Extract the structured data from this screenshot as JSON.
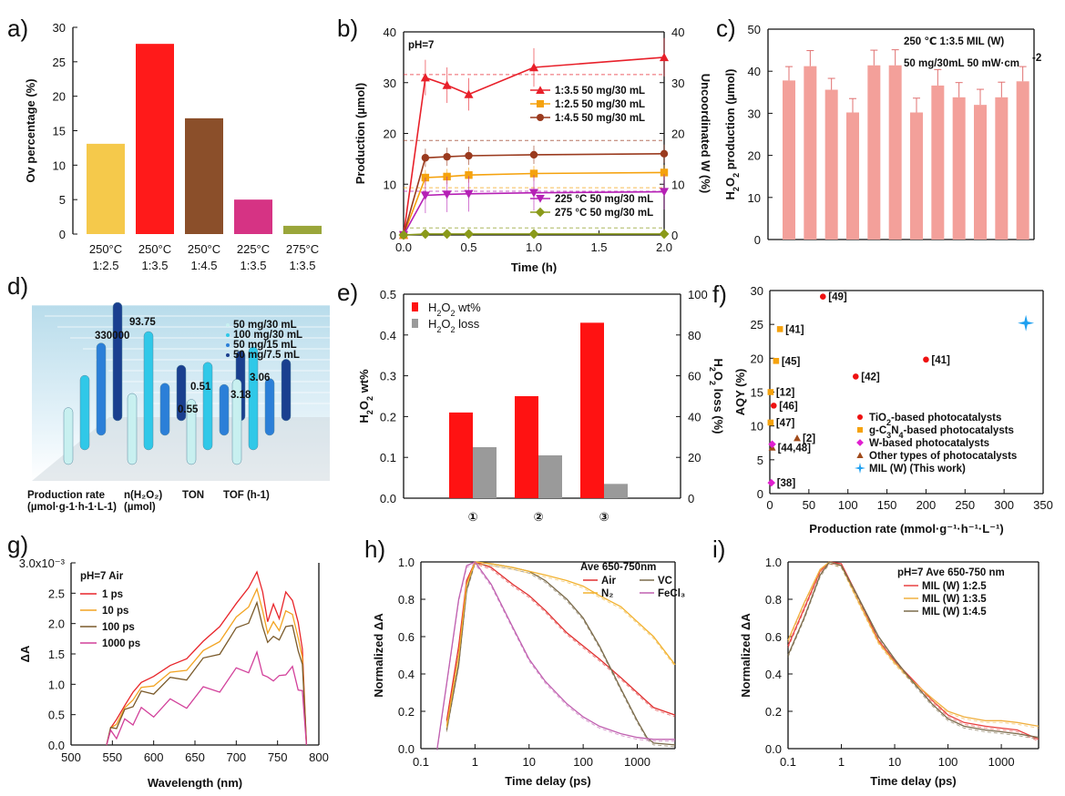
{
  "chart_data": [
    {
      "id": "a",
      "panel_label": "a)",
      "type": "bar",
      "categories": [
        [
          "250°C",
          "1:2.5"
        ],
        [
          "250°C",
          "1:3.5"
        ],
        [
          "250°C",
          "1:4.5"
        ],
        [
          "225°C",
          "1:3.5"
        ],
        [
          "275°C",
          "1:3.5"
        ]
      ],
      "values": [
        13.1,
        27.6,
        16.8,
        5.0,
        1.2
      ],
      "colors": [
        "#f5c94b",
        "#ff1a1a",
        "#8b4f2a",
        "#d63384",
        "#9aa63a"
      ],
      "ylabel": "Ov percentage (%)",
      "ylim": [
        0,
        30
      ],
      "yticks": [
        0,
        5,
        10,
        15,
        20,
        25,
        30
      ]
    },
    {
      "id": "b",
      "panel_label": "b)",
      "type": "line",
      "annotation": "pH=7",
      "xlabel": "Time (h)",
      "ylabel": "Production (µmol)",
      "y2label": "Uncoordinated W (%)",
      "xlim": [
        0,
        2
      ],
      "xticks": [
        "0.0",
        "0.5",
        "1.0",
        "1.5",
        "2.0"
      ],
      "ylim": [
        0,
        40
      ],
      "yticks": [
        0,
        10,
        20,
        30,
        40
      ],
      "y2ticks": [
        0,
        10,
        20,
        30,
        40
      ],
      "series": [
        {
          "name": "1:3.5 50 mg/30 mL",
          "color": "#e8202a",
          "marker": "triangle-up",
          "x": [
            0,
            0.167,
            0.333,
            0.5,
            1,
            2
          ],
          "y": [
            0,
            31,
            29.5,
            27.7,
            33,
            35
          ],
          "err": [
            0,
            3.5,
            3.5,
            3.2,
            3.8,
            3.8
          ]
        },
        {
          "name": "1:2.5 50 mg/30 mL",
          "color": "#f5a20d",
          "marker": "square",
          "x": [
            0,
            0.167,
            0.333,
            0.5,
            1,
            2
          ],
          "y": [
            0,
            11.3,
            11.5,
            11.8,
            12.1,
            12.3
          ],
          "err": [
            0,
            1.5,
            1.5,
            1.5,
            1.5,
            1.5
          ]
        },
        {
          "name": "1:4.5 50 mg/30 mL",
          "color": "#9a3a1e",
          "marker": "circle",
          "x": [
            0,
            0.167,
            0.333,
            0.5,
            1,
            2
          ],
          "y": [
            0,
            15.2,
            15.4,
            15.6,
            15.8,
            16.0
          ],
          "err": [
            0,
            1.8,
            1.8,
            1.8,
            1.8,
            1.8
          ]
        },
        {
          "name": "225 °C 50 mg/30 mL",
          "color": "#b520b5",
          "marker": "triangle-down",
          "x": [
            0,
            0.167,
            0.333,
            0.5,
            1,
            2
          ],
          "y": [
            0,
            7.8,
            8.0,
            8.1,
            8.3,
            8.5
          ],
          "err": [
            0,
            3.5,
            3.5,
            3.5,
            3.5,
            3.5
          ]
        },
        {
          "name": "275 °C 50 mg/30 mL",
          "color": "#8a9a1a",
          "marker": "diamond",
          "x": [
            0,
            0.167,
            0.333,
            0.5,
            1,
            2
          ],
          "y": [
            0,
            0.2,
            0.2,
            0.2,
            0.2,
            0.2
          ],
          "err": [
            0,
            0,
            0,
            0,
            0,
            0
          ]
        }
      ],
      "reference_lines": [
        {
          "color": "#e8202a",
          "y2": 31.6
        },
        {
          "color": "#9a3a1e",
          "y2": 18.6
        },
        {
          "color": "#f5a20d",
          "y2": 9.3
        },
        {
          "color": "#b520b5",
          "y2": 8.6
        },
        {
          "color": "#8a9a1a",
          "y2": 1.4
        }
      ]
    },
    {
      "id": "c",
      "panel_label": "c)",
      "type": "bar",
      "title_lines": [
        "250 ℃ 1:3.5 MIL (W)",
        "50 mg/30mL 50 mW·cm"
      ],
      "title_sup": "-2",
      "ylabel_parts": [
        "H",
        "2",
        "O",
        "2",
        " production (µmol)"
      ],
      "ylim": [
        0,
        50
      ],
      "yticks": [
        0,
        10,
        20,
        30,
        40,
        50
      ],
      "values": [
        37.8,
        41.2,
        35.6,
        30.2,
        41.4,
        41.4,
        30.2,
        36.6,
        33.8,
        32.0,
        33.8,
        37.6
      ],
      "err": [
        3.3,
        3.7,
        2.7,
        3.3,
        3.6,
        3.7,
        3.4,
        3.8,
        3.5,
        3.7,
        3.6,
        3.5
      ],
      "color": "#f3a09a"
    },
    {
      "id": "d",
      "panel_label": "d)",
      "type": "bar",
      "legend": [
        "50 mg/30 mL",
        "100 mg/30 mL",
        "50 mg/15 mL",
        "50 mg/7.5 mL"
      ],
      "categories": [
        "Production rate",
        "n(H₂O₂)",
        "TON",
        "TOF (h-1)"
      ],
      "sublabels": [
        "(µmol·g-1·h-1·L-1)",
        "(µmol)",
        "",
        ""
      ],
      "annotations": [
        "330000",
        "93.75",
        "0.55",
        "0.51",
        "3.18",
        "3.06"
      ],
      "values": [
        [
          0.48,
          0.63,
          0.78,
          1.0
        ],
        [
          0.6,
          1.0,
          0.44,
          0.47
        ],
        [
          0.55,
          0.74,
          0.43,
          0.59
        ],
        [
          0.72,
          0.87,
          0.48,
          0.52
        ]
      ],
      "colors": [
        "#c8f0f0",
        "#30c8e8",
        "#2b7fd8",
        "#1a3f8f"
      ]
    },
    {
      "id": "e",
      "panel_label": "e)",
      "type": "bar",
      "categories": [
        "①",
        "②",
        "③"
      ],
      "series": [
        {
          "name_parts": [
            "H",
            "2",
            "O",
            "2",
            " wt%"
          ],
          "color": "#ff1212",
          "axis": "left",
          "values": [
            0.21,
            0.25,
            0.43
          ]
        },
        {
          "name_parts": [
            "H",
            "2",
            "O",
            "2",
            " loss"
          ],
          "color": "#9a9a9a",
          "axis": "right",
          "values": [
            25,
            21,
            7
          ]
        }
      ],
      "ylim": [
        0,
        0.5
      ],
      "yticks": [
        "0.0",
        "0.1",
        "0.2",
        "0.3",
        "0.4",
        "0.5"
      ],
      "y2lim": [
        0,
        100
      ],
      "y2ticks": [
        "0",
        "20",
        "40",
        "60",
        "80",
        "100"
      ],
      "ylabel_parts": [
        "H",
        "2",
        "O",
        "2",
        " wt%"
      ],
      "y2label_parts": [
        "H",
        "2",
        "O",
        "2",
        " loss (%)"
      ]
    },
    {
      "id": "f",
      "panel_label": "f)",
      "type": "scatter",
      "xlabel": "Production rate (mmol·g⁻¹·h⁻¹·L⁻¹)",
      "ylabel": "AQY (%)",
      "xlim": [
        0,
        350
      ],
      "xticks": [
        0,
        50,
        100,
        150,
        200,
        250,
        300,
        350
      ],
      "ylim": [
        0,
        30
      ],
      "yticks": [
        0,
        5,
        10,
        15,
        20,
        25,
        30
      ],
      "points": [
        {
          "x": 68,
          "y": 29.1,
          "group": "TiO2",
          "label": "[49]"
        },
        {
          "x": 200,
          "y": 19.8,
          "group": "TiO2",
          "label": "[41]"
        },
        {
          "x": 110,
          "y": 17.3,
          "group": "TiO2",
          "label": "[42]"
        },
        {
          "x": 5,
          "y": 13.0,
          "group": "TiO2",
          "label": "[46]"
        },
        {
          "x": 13,
          "y": 24.3,
          "group": "gC3N4",
          "label": "[41]"
        },
        {
          "x": 8,
          "y": 19.6,
          "group": "gC3N4",
          "label": "[45]"
        },
        {
          "x": 1,
          "y": 15.0,
          "group": "gC3N4",
          "label": "[12]"
        },
        {
          "x": 1,
          "y": 10.5,
          "group": "gC3N4",
          "label": "[47]"
        },
        {
          "x": 35,
          "y": 8.2,
          "group": "other",
          "label": "[2]"
        },
        {
          "x": 3,
          "y": 6.8,
          "group": "other",
          "label": "[44,48]"
        },
        {
          "x": 3,
          "y": 7.3,
          "group": "W",
          "label": ""
        },
        {
          "x": 2,
          "y": 1.6,
          "group": "W",
          "label": "[38]"
        },
        {
          "x": 328,
          "y": 25.2,
          "group": "MIL",
          "label": ""
        }
      ],
      "legend": [
        {
          "group": "TiO2",
          "parts": [
            "TiO",
            "2",
            "-based photocatalysts"
          ],
          "color": "#ee1111",
          "marker": "circle"
        },
        {
          "group": "gC3N4",
          "parts": [
            "g-C",
            "3",
            "N",
            "4",
            "-based photocatalysts"
          ],
          "color": "#f5a20d",
          "marker": "square"
        },
        {
          "group": "W",
          "parts": [
            "W-based photocatalysts"
          ],
          "color": "#e020d0",
          "marker": "diamond"
        },
        {
          "group": "other",
          "parts": [
            "Other types of photocatalysts"
          ],
          "color": "#a04a1a",
          "marker": "triangle"
        },
        {
          "group": "MIL",
          "parts": [
            "MIL (W) (This work)"
          ],
          "color": "#1ea0f0",
          "marker": "star"
        }
      ]
    },
    {
      "id": "g",
      "panel_label": "g)",
      "type": "line",
      "annotation": "pH=7 Air",
      "xlabel": "Wavelength (nm)",
      "ylabel": "ΔA",
      "xlim": [
        500,
        800
      ],
      "xticks": [
        500,
        550,
        600,
        650,
        700,
        750,
        800
      ],
      "ylim": [
        0,
        0.003
      ],
      "yticks": [
        "0.0",
        "0.5",
        "1.0",
        "1.5",
        "2.0",
        "2.5",
        "3.0x10⁻³"
      ],
      "series": [
        {
          "name": "1 ps",
          "color": "#e8252a",
          "scale": 1.0
        },
        {
          "name": "10 ps",
          "color": "#f2a422",
          "scale": 0.89
        },
        {
          "name": "100 ps",
          "color": "#7a5a2a",
          "scale": 0.8
        },
        {
          "name": "1000 ps",
          "color": "#d2409a",
          "scale": 0.5
        }
      ],
      "shape_x": [
        543,
        548,
        555,
        565,
        575,
        585,
        600,
        620,
        640,
        660,
        680,
        700,
        715,
        725,
        732,
        738,
        745,
        752,
        760,
        768,
        775,
        780,
        785
      ],
      "shape_y": [
        0,
        0.25,
        0.45,
        0.62,
        0.9,
        1.0,
        1.16,
        1.28,
        1.45,
        1.68,
        1.98,
        2.3,
        2.62,
        2.82,
        2.55,
        2.0,
        2.35,
        2.05,
        2.55,
        2.35,
        2.05,
        1.55,
        0
      ]
    },
    {
      "id": "h",
      "panel_label": "h)",
      "type": "line",
      "annotation": "Ave 650-750nm",
      "xlabel": "Time delay (ps)",
      "ylabel": "Normalized ΔA",
      "xscale": "log",
      "xlim": [
        0.1,
        5000
      ],
      "xticks": [
        "0.1",
        "1",
        "10",
        "100",
        "1000"
      ],
      "ylim": [
        0,
        1.0
      ],
      "yticks": [
        "0.0",
        "0.2",
        "0.4",
        "0.6",
        "0.8",
        "1.0"
      ],
      "series": [
        {
          "name": "Air",
          "color": "#e03030",
          "x": [
            0.3,
            0.5,
            0.7,
            1,
            2,
            5,
            10,
            20,
            50,
            100,
            200,
            500,
            1000,
            2000,
            5000
          ],
          "y": [
            0.15,
            0.55,
            0.9,
            1.0,
            0.97,
            0.88,
            0.82,
            0.74,
            0.62,
            0.55,
            0.48,
            0.38,
            0.3,
            0.22,
            0.18
          ]
        },
        {
          "name": "VC",
          "color": "#7a6a4a",
          "x": [
            0.3,
            0.5,
            0.7,
            1,
            2,
            5,
            10,
            20,
            50,
            100,
            200,
            500,
            1000,
            1500,
            2000,
            5000
          ],
          "y": [
            0.1,
            0.45,
            0.85,
            1.0,
            0.99,
            0.97,
            0.95,
            0.9,
            0.8,
            0.7,
            0.55,
            0.32,
            0.15,
            0.06,
            0.03,
            0.02
          ]
        },
        {
          "name": "N₂",
          "color": "#f2b230",
          "x": [
            0.3,
            0.5,
            0.7,
            1,
            2,
            5,
            10,
            20,
            50,
            100,
            200,
            500,
            1000,
            2000,
            5000
          ],
          "y": [
            0.12,
            0.5,
            0.88,
            1.0,
            0.99,
            0.97,
            0.95,
            0.93,
            0.9,
            0.87,
            0.82,
            0.76,
            0.68,
            0.6,
            0.45
          ]
        },
        {
          "name": "FeCl₃",
          "color": "#c060b0",
          "x": [
            0.2,
            0.3,
            0.5,
            0.7,
            1,
            2,
            5,
            10,
            20,
            50,
            100,
            200,
            500,
            1000,
            2000,
            5000
          ],
          "y": [
            0.0,
            0.35,
            0.8,
            0.98,
            1.0,
            0.88,
            0.65,
            0.48,
            0.36,
            0.24,
            0.17,
            0.12,
            0.08,
            0.06,
            0.05,
            0.05
          ]
        }
      ]
    },
    {
      "id": "i",
      "panel_label": "i)",
      "type": "line",
      "annotation": "pH=7 Ave 650-750 nm",
      "xlabel": "Time delay (ps)",
      "ylabel": "Normalized ΔA",
      "xscale": "log",
      "xlim": [
        0.1,
        5000
      ],
      "xticks": [
        "0.1",
        "1",
        "10",
        "100",
        "1000"
      ],
      "ylim": [
        0,
        1.0
      ],
      "yticks": [
        "0.0",
        "0.2",
        "0.4",
        "0.6",
        "0.8",
        "1.0"
      ],
      "series": [
        {
          "name": "MIL (W) 1:2.5",
          "color": "#e84040",
          "x": [
            0.1,
            0.2,
            0.4,
            0.6,
            1,
            2,
            5,
            10,
            20,
            50,
            100,
            200,
            500,
            1000,
            2000,
            5000
          ],
          "y": [
            0.55,
            0.75,
            0.95,
            1.0,
            0.99,
            0.82,
            0.58,
            0.47,
            0.38,
            0.26,
            0.18,
            0.14,
            0.12,
            0.11,
            0.1,
            0.05
          ]
        },
        {
          "name": "MIL (W) 1:3.5",
          "color": "#f0b040",
          "x": [
            0.1,
            0.2,
            0.4,
            0.6,
            1,
            2,
            5,
            10,
            20,
            50,
            100,
            200,
            500,
            1000,
            2000,
            5000
          ],
          "y": [
            0.58,
            0.78,
            0.96,
            1.0,
            0.98,
            0.8,
            0.57,
            0.46,
            0.37,
            0.27,
            0.2,
            0.17,
            0.15,
            0.15,
            0.14,
            0.12
          ]
        },
        {
          "name": "MIL (W) 1:4.5",
          "color": "#7a6a4a",
          "x": [
            0.1,
            0.2,
            0.4,
            0.6,
            1,
            2,
            5,
            10,
            20,
            50,
            100,
            200,
            500,
            1000,
            2000,
            5000
          ],
          "y": [
            0.5,
            0.7,
            0.93,
            1.0,
            0.98,
            0.82,
            0.6,
            0.48,
            0.37,
            0.24,
            0.16,
            0.12,
            0.1,
            0.09,
            0.08,
            0.06
          ]
        }
      ]
    }
  ]
}
